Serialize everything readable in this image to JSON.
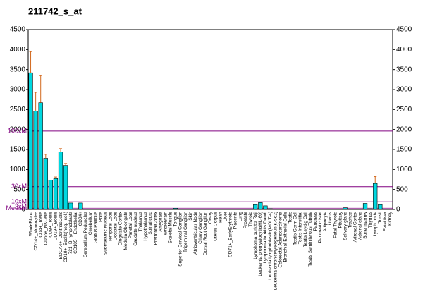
{
  "chart_data": {
    "type": "bar",
    "title": "211742_s_at",
    "categories": [
      "WholeBlood",
      "CD14+_Monocytes",
      "CD4+_Tcells",
      "CD56+_NKCells",
      "CD8+_Tcells",
      "CD19+_Bcells",
      "BDCA4+_DentriticCells",
      "CD19+_Bcells(neg._sel.)",
      "721_B_lymphoblasts",
      "CD105+_Endothelial",
      "CD34+",
      "Cerebellum Peduncles",
      "Cerebellum",
      "Globus Pallidus",
      "Pons",
      "Subthalamic Nucleus",
      "Temporal Lobe",
      "Occipital Lobe",
      "Cingulate Cortex",
      "Medulla Oblongata",
      "Parietal Lobe",
      "Caudate nucleus",
      "Thalamus",
      "Hypothalamus",
      "Spinal cord",
      "PrefrontalCortex",
      "Amygdala",
      "WholeBrain",
      "Skeletal Muscle",
      "Tongue",
      "Superior Cervical Ganglion",
      "Trigeminal Ganglion",
      "Skin",
      "Atrioventricular Node",
      "Ciliary Ganglion",
      "Dorsal Root Ganglion",
      "Ovary",
      "Uterus Corpus",
      "Heart",
      "Liver",
      "CD71+_EarlyErythroid",
      "Placenta",
      "Lung",
      "Prostate",
      "Thyroid",
      "Lymphoma burkitts Raji",
      "Leukemia promyelocytic(HL-60)",
      "Lymphoma burkitts Daudi",
      "Leukemia lymphoblastic(MOLT-4)",
      "Leukemia chronicMyelogenous(K-562)",
      "Colorectal Adenocarcinoma",
      "Bronchial Epithelial Cells",
      "Testis",
      "Testis Germ Cell",
      "Testis Interstitial",
      "Testis Leydig Cell",
      "Testis Seminiferous Tubule",
      "Pancreas",
      "Pancreatic Islet",
      "Adipocyte",
      "Uterus",
      "Fetal Thyroid",
      "Pituitary",
      "Salivary gland",
      "Trachea",
      "Adrenal Cortex",
      "Adrenal gland",
      "Bone marrow",
      "Thymus",
      "Lymph node",
      "Tonsil",
      "Fetal liver",
      "Kidney"
    ],
    "values": [
      3420,
      2460,
      2670,
      1280,
      730,
      770,
      1440,
      1100,
      160,
      10,
      160,
      10,
      10,
      10,
      10,
      10,
      10,
      10,
      10,
      10,
      10,
      10,
      10,
      10,
      10,
      10,
      10,
      10,
      10,
      30,
      10,
      10,
      10,
      10,
      10,
      10,
      10,
      10,
      10,
      10,
      10,
      10,
      10,
      10,
      10,
      120,
      170,
      90,
      20,
      10,
      10,
      10,
      10,
      10,
      10,
      10,
      10,
      10,
      10,
      10,
      10,
      10,
      10,
      40,
      10,
      10,
      10,
      150,
      20,
      650,
      120,
      10,
      10
    ],
    "errors": [
      530,
      470,
      680,
      100,
      null,
      40,
      80,
      50,
      null,
      null,
      null,
      null,
      null,
      null,
      null,
      null,
      null,
      null,
      null,
      null,
      null,
      null,
      null,
      null,
      null,
      null,
      null,
      null,
      null,
      null,
      null,
      null,
      null,
      null,
      null,
      null,
      null,
      null,
      null,
      null,
      null,
      null,
      null,
      null,
      null,
      null,
      null,
      null,
      null,
      null,
      null,
      null,
      null,
      null,
      null,
      null,
      null,
      null,
      null,
      null,
      null,
      null,
      null,
      null,
      null,
      null,
      null,
      null,
      null,
      170,
      null,
      null,
      null
    ],
    "color": "#00d8e0",
    "error_color": "#d2691e",
    "ylim": [
      0,
      4500
    ],
    "yticks": [
      0,
      500,
      1000,
      1500,
      2000,
      2500,
      3000,
      3500,
      4000,
      4500
    ],
    "y2lim": [
      0,
      4500
    ],
    "y2ticks": [
      0,
      500,
      1000,
      1500,
      2000,
      2500,
      3000,
      3500,
      4000,
      4500
    ],
    "threshold_color": "#800080",
    "thresholds": [
      {
        "label": "100xM",
        "value": 1960
      },
      {
        "label": "30xM",
        "value": 570
      },
      {
        "label": "10xM",
        "value": 190
      },
      {
        "label": "3xM",
        "value": 60
      },
      {
        "label": "Median",
        "value": 20
      }
    ]
  }
}
